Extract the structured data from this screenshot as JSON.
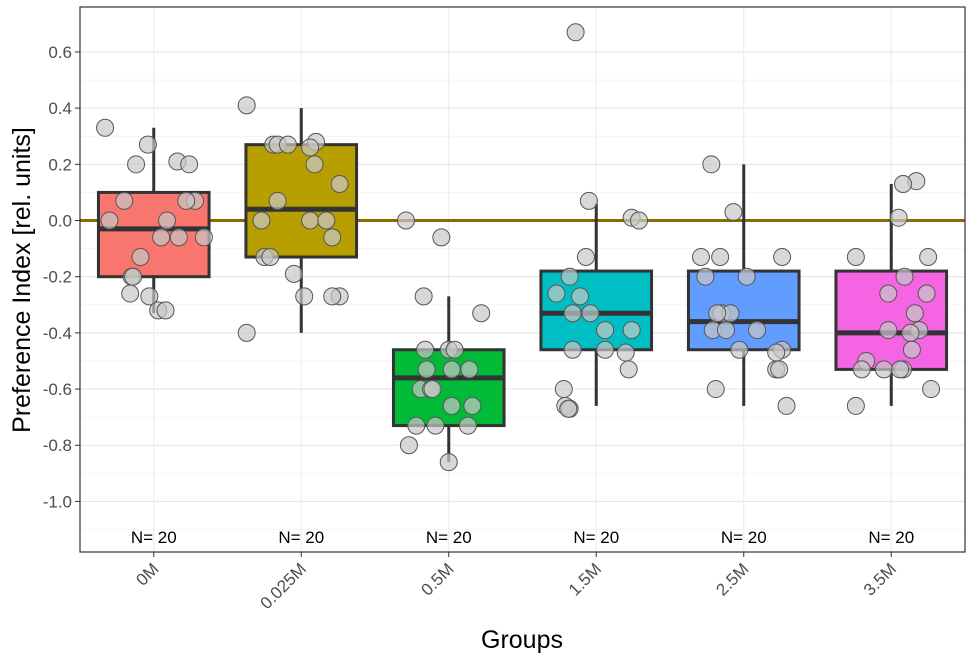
{
  "chart_data": {
    "type": "box",
    "xlabel": "Groups",
    "ylabel": "Preference Index [rel. units]",
    "ylim": [
      -1.18,
      0.76
    ],
    "yticks": [
      0.6,
      0.4,
      0.2,
      0.0,
      -0.2,
      -0.4,
      -0.6,
      -0.8,
      -1.0
    ],
    "ytick_labels": [
      "0.6",
      "0.4",
      "0.2",
      "0.0",
      "-0.2",
      "-0.4",
      "-0.6",
      "-0.8",
      "-1.0"
    ],
    "grid": true,
    "reference_line": {
      "y": 0.0,
      "color": "#8B6B00"
    },
    "categories": [
      "0M",
      "0.025M",
      "0.5M",
      "1.5M",
      "2.5M",
      "3.5M"
    ],
    "n_labels": [
      "N= 20",
      "N= 20",
      "N= 20",
      "N= 20",
      "N= 20",
      "N= 20"
    ],
    "colors": [
      "#F8766D",
      "#B79F00",
      "#00BA38",
      "#00BFC4",
      "#619CFF",
      "#F564E3"
    ],
    "boxes": [
      {
        "lower_whisker": -0.33,
        "q1": -0.2,
        "median": -0.03,
        "q3": 0.1,
        "upper_whisker": 0.33
      },
      {
        "lower_whisker": -0.4,
        "q1": -0.13,
        "median": 0.04,
        "q3": 0.27,
        "upper_whisker": 0.4
      },
      {
        "lower_whisker": -0.86,
        "q1": -0.73,
        "median": -0.56,
        "q3": -0.46,
        "upper_whisker": -0.27
      },
      {
        "lower_whisker": -0.66,
        "q1": -0.46,
        "median": -0.33,
        "q3": -0.18,
        "upper_whisker": 0.06
      },
      {
        "lower_whisker": -0.66,
        "q1": -0.46,
        "median": -0.36,
        "q3": -0.18,
        "upper_whisker": 0.2
      },
      {
        "lower_whisker": -0.66,
        "q1": -0.53,
        "median": -0.4,
        "q3": -0.18,
        "upper_whisker": 0.13
      }
    ],
    "points": [
      {
        "group": 0,
        "values": [
          0.33,
          0.27,
          0.2,
          0.21,
          0.2,
          0.07,
          0.07,
          0.07,
          0.0,
          0.0,
          -0.06,
          -0.06,
          -0.06,
          -0.13,
          -0.2,
          -0.2,
          -0.26,
          -0.27,
          -0.32,
          -0.32
        ],
        "offsets": [
          -0.33,
          -0.04,
          -0.12,
          0.16,
          0.24,
          -0.2,
          0.28,
          0.22,
          -0.3,
          0.09,
          0.05,
          0.17,
          0.34,
          -0.09,
          -0.15,
          -0.14,
          -0.16,
          -0.03,
          0.03,
          0.08
        ]
      },
      {
        "group": 1,
        "values": [
          0.41,
          0.27,
          0.27,
          0.27,
          0.28,
          0.26,
          0.2,
          0.13,
          0.07,
          0.0,
          0.0,
          0.0,
          -0.06,
          -0.13,
          -0.13,
          -0.19,
          -0.27,
          -0.27,
          -0.27,
          -0.4
        ],
        "offsets": [
          -0.37,
          -0.19,
          -0.16,
          -0.09,
          0.1,
          0.06,
          0.09,
          0.26,
          -0.16,
          -0.27,
          0.06,
          0.17,
          0.21,
          -0.25,
          -0.21,
          -0.05,
          0.02,
          0.26,
          0.21,
          -0.37
        ]
      },
      {
        "group": 2,
        "values": [
          0.0,
          -0.06,
          -0.27,
          -0.33,
          -0.46,
          -0.46,
          -0.46,
          -0.53,
          -0.53,
          -0.53,
          -0.6,
          -0.6,
          -0.6,
          -0.66,
          -0.66,
          -0.73,
          -0.73,
          -0.73,
          -0.8,
          -0.86
        ],
        "offsets": [
          -0.29,
          -0.05,
          -0.17,
          0.22,
          -0.16,
          0.0,
          0.04,
          -0.15,
          0.02,
          0.14,
          -0.19,
          -0.12,
          -0.11,
          0.02,
          0.16,
          -0.22,
          -0.09,
          0.13,
          -0.27,
          0.0
        ]
      },
      {
        "group": 3,
        "values": [
          0.67,
          0.07,
          0.01,
          0.0,
          -0.13,
          -0.2,
          -0.26,
          -0.27,
          -0.33,
          -0.33,
          -0.39,
          -0.39,
          -0.46,
          -0.46,
          -0.47,
          -0.53,
          -0.6,
          -0.66,
          -0.67,
          -0.67
        ],
        "offsets": [
          -0.14,
          -0.05,
          0.24,
          0.29,
          -0.07,
          -0.18,
          -0.27,
          -0.11,
          -0.16,
          -0.04,
          0.06,
          0.24,
          -0.16,
          0.06,
          0.2,
          0.22,
          -0.22,
          -0.21,
          -0.18,
          -0.19
        ]
      },
      {
        "group": 4,
        "values": [
          0.2,
          0.03,
          -0.13,
          -0.13,
          -0.13,
          -0.2,
          -0.2,
          -0.33,
          -0.33,
          -0.33,
          -0.39,
          -0.39,
          -0.39,
          -0.46,
          -0.46,
          -0.47,
          -0.53,
          -0.53,
          -0.6,
          -0.66
        ],
        "offsets": [
          -0.22,
          -0.07,
          -0.29,
          -0.16,
          0.26,
          -0.26,
          0.02,
          -0.15,
          -0.09,
          -0.18,
          -0.21,
          -0.12,
          0.09,
          0.26,
          -0.03,
          0.22,
          0.22,
          0.24,
          -0.19,
          0.29
        ]
      },
      {
        "group": 5,
        "values": [
          0.14,
          0.13,
          0.01,
          -0.13,
          -0.13,
          -0.2,
          -0.26,
          -0.26,
          -0.33,
          -0.39,
          -0.39,
          -0.4,
          -0.46,
          -0.5,
          -0.53,
          -0.53,
          -0.53,
          -0.53,
          -0.6,
          -0.66
        ],
        "offsets": [
          0.17,
          0.08,
          0.05,
          -0.24,
          0.25,
          0.09,
          -0.02,
          0.24,
          0.16,
          -0.02,
          0.19,
          0.13,
          0.14,
          -0.17,
          -0.2,
          -0.05,
          0.08,
          0.06,
          0.27,
          -0.24
        ]
      }
    ]
  }
}
